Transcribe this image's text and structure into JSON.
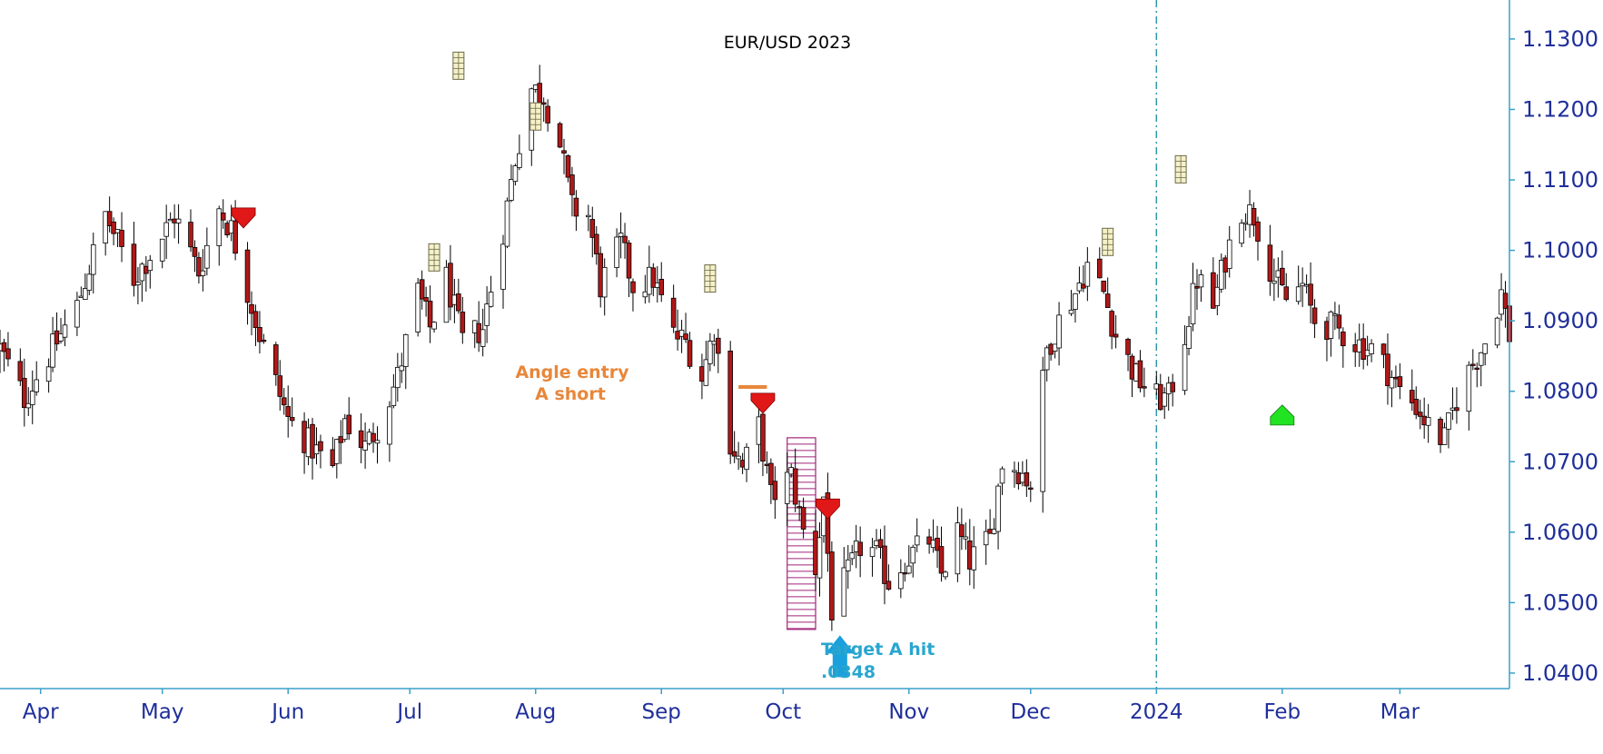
{
  "chart_data": {
    "type": "candlestick",
    "title": "EUR/USD 2023",
    "x_tick_labels": [
      "Apr",
      "May",
      "Jun",
      "Jul",
      "Aug",
      "Sep",
      "Oct",
      "Nov",
      "Dec",
      "2024",
      "Feb",
      "Mar"
    ],
    "x_tick_dates": [
      "2023-04-01",
      "2023-05-01",
      "2023-06-01",
      "2023-07-01",
      "2023-08-01",
      "2023-09-01",
      "2023-10-01",
      "2023-11-01",
      "2023-12-01",
      "2024-01-01",
      "2024-02-01",
      "2024-03-01"
    ],
    "y_tick_labels": [
      "1.1300",
      "1.1200",
      "1.1100",
      "1.1000",
      "1.0900",
      "1.0800",
      "1.0700",
      "1.0600",
      "1.0500",
      "1.0400"
    ],
    "ylim": [
      1.0378,
      1.1345
    ],
    "x_range": [
      "2023-03-22",
      "2024-03-28"
    ],
    "grid": false,
    "colors": {
      "axis": "#3aa0c8",
      "tick_text": "#1f2f9a",
      "bull_body": "#ffffff",
      "bear_body": "#b01818",
      "wick": "#000000",
      "sell_signal": "#e11818",
      "buy_signal": "#22e322",
      "target_arrow": "#1aa0dc",
      "entry_line": "#e8873a",
      "box": "#a2247a"
    },
    "anchor_points": [
      [
        "2023-03-22",
        1.086
      ],
      [
        "2023-03-28",
        1.079
      ],
      [
        "2023-04-03",
        1.085
      ],
      [
        "2023-04-10",
        1.092
      ],
      [
        "2023-04-17",
        1.105
      ],
      [
        "2023-04-24",
        1.096
      ],
      [
        "2023-05-01",
        1.102
      ],
      [
        "2023-05-04",
        1.105
      ],
      [
        "2023-05-10",
        1.097
      ],
      [
        "2023-05-15",
        1.106
      ],
      [
        "2023-05-18",
        1.103
      ],
      [
        "2023-05-25",
        1.088
      ],
      [
        "2023-06-01",
        1.076
      ],
      [
        "2023-06-07",
        1.072
      ],
      [
        "2023-06-12",
        1.069
      ],
      [
        "2023-06-15",
        1.076
      ],
      [
        "2023-06-20",
        1.072
      ],
      [
        "2023-06-23",
        1.075
      ],
      [
        "2023-06-28",
        1.082
      ],
      [
        "2023-07-03",
        1.094
      ],
      [
        "2023-07-06",
        1.089
      ],
      [
        "2023-07-10",
        1.096
      ],
      [
        "2023-07-14",
        1.087
      ],
      [
        "2023-07-19",
        1.089
      ],
      [
        "2023-07-24",
        1.103
      ],
      [
        "2023-07-27",
        1.113
      ],
      [
        "2023-07-31",
        1.123
      ],
      [
        "2023-08-03",
        1.122
      ],
      [
        "2023-08-07",
        1.115
      ],
      [
        "2023-08-10",
        1.106
      ],
      [
        "2023-08-14",
        1.105
      ],
      [
        "2023-08-17",
        1.095
      ],
      [
        "2023-08-22",
        1.101
      ],
      [
        "2023-08-25",
        1.095
      ],
      [
        "2023-08-30",
        1.096
      ],
      [
        "2023-09-04",
        1.088
      ],
      [
        "2023-09-07",
        1.087
      ],
      [
        "2023-09-11",
        1.082
      ],
      [
        "2023-09-14",
        1.089
      ],
      [
        "2023-09-18",
        1.073
      ],
      [
        "2023-09-21",
        1.069
      ],
      [
        "2023-09-25",
        1.075
      ],
      [
        "2023-09-28",
        1.065
      ],
      [
        "2023-10-03",
        1.068
      ],
      [
        "2023-10-06",
        1.06
      ],
      [
        "2023-10-09",
        1.055
      ],
      [
        "2023-10-11",
        1.065
      ],
      [
        "2023-10-13",
        1.049
      ],
      [
        "2023-10-17",
        1.054
      ],
      [
        "2023-10-20",
        1.058
      ],
      [
        "2023-10-24",
        1.057
      ],
      [
        "2023-10-27",
        1.053
      ],
      [
        "2023-10-31",
        1.056
      ],
      [
        "2023-11-06",
        1.059
      ],
      [
        "2023-11-09",
        1.054
      ],
      [
        "2023-11-13",
        1.06
      ],
      [
        "2023-11-16",
        1.056
      ],
      [
        "2023-11-21",
        1.059
      ],
      [
        "2023-11-24",
        1.07
      ],
      [
        "2023-11-28",
        1.069
      ],
      [
        "2023-12-01",
        1.067
      ],
      [
        "2023-12-05",
        1.086
      ],
      [
        "2023-12-08",
        1.09
      ],
      [
        "2023-12-12",
        1.094
      ],
      [
        "2023-12-15",
        1.098
      ],
      [
        "2023-12-19",
        1.094
      ],
      [
        "2023-12-22",
        1.088
      ],
      [
        "2023-12-27",
        1.082
      ],
      [
        "2024-01-01",
        1.079
      ],
      [
        "2024-01-04",
        1.079
      ],
      [
        "2024-01-08",
        1.088
      ],
      [
        "2024-01-11",
        1.096
      ],
      [
        "2024-01-15",
        1.092
      ],
      [
        "2024-01-18",
        1.099
      ],
      [
        "2024-01-22",
        1.106
      ],
      [
        "2024-01-25",
        1.105
      ],
      [
        "2024-01-30",
        1.096
      ],
      [
        "2024-02-02",
        1.093
      ],
      [
        "2024-02-06",
        1.095
      ],
      [
        "2024-02-09",
        1.09
      ],
      [
        "2024-02-14",
        1.089
      ],
      [
        "2024-02-19",
        1.087
      ],
      [
        "2024-02-23",
        1.086
      ],
      [
        "2024-02-27",
        1.083
      ],
      [
        "2024-03-01",
        1.08
      ],
      [
        "2024-03-05",
        1.078
      ],
      [
        "2024-03-08",
        1.075
      ],
      [
        "2024-03-12",
        1.073
      ],
      [
        "2024-03-15",
        1.079
      ],
      [
        "2024-03-19",
        1.084
      ],
      [
        "2024-03-22",
        1.087
      ],
      [
        "2024-03-26",
        1.094
      ],
      [
        "2024-03-28",
        1.088
      ]
    ],
    "dashed_marker_date": "2024-01-01",
    "sell_signals": [
      {
        "date": "2023-05-21",
        "price": 1.1046
      },
      {
        "date": "2023-09-26",
        "price": 1.0783
      },
      {
        "date": "2023-10-12",
        "price": 1.0633
      }
    ],
    "buy_signals": [
      {
        "date": "2024-02-01",
        "price": 1.0765
      }
    ],
    "volatility_markers": [
      {
        "date": "2023-07-13",
        "price": 1.1262
      },
      {
        "date": "2023-08-01",
        "price": 1.119
      },
      {
        "date": "2023-07-07",
        "price": 1.099
      },
      {
        "date": "2023-09-13",
        "price": 1.096
      },
      {
        "date": "2023-12-20",
        "price": 1.1012
      },
      {
        "date": "2024-01-07",
        "price": 1.1115
      }
    ],
    "entry_line": {
      "start": "2023-09-20",
      "end": "2023-09-27",
      "price": 1.0806
    },
    "target_box": {
      "start": "2023-10-02",
      "end": "2023-10-09",
      "top": 1.0734,
      "bottom": 1.0462
    },
    "target_arrow": {
      "date": "2023-10-15",
      "price": 1.042
    }
  },
  "annotations": {
    "entry_label_line1": "Angle entry",
    "entry_label_line2": "A short",
    "target_label_line1": "Target A hit",
    "target_label_line2": ".0348"
  }
}
